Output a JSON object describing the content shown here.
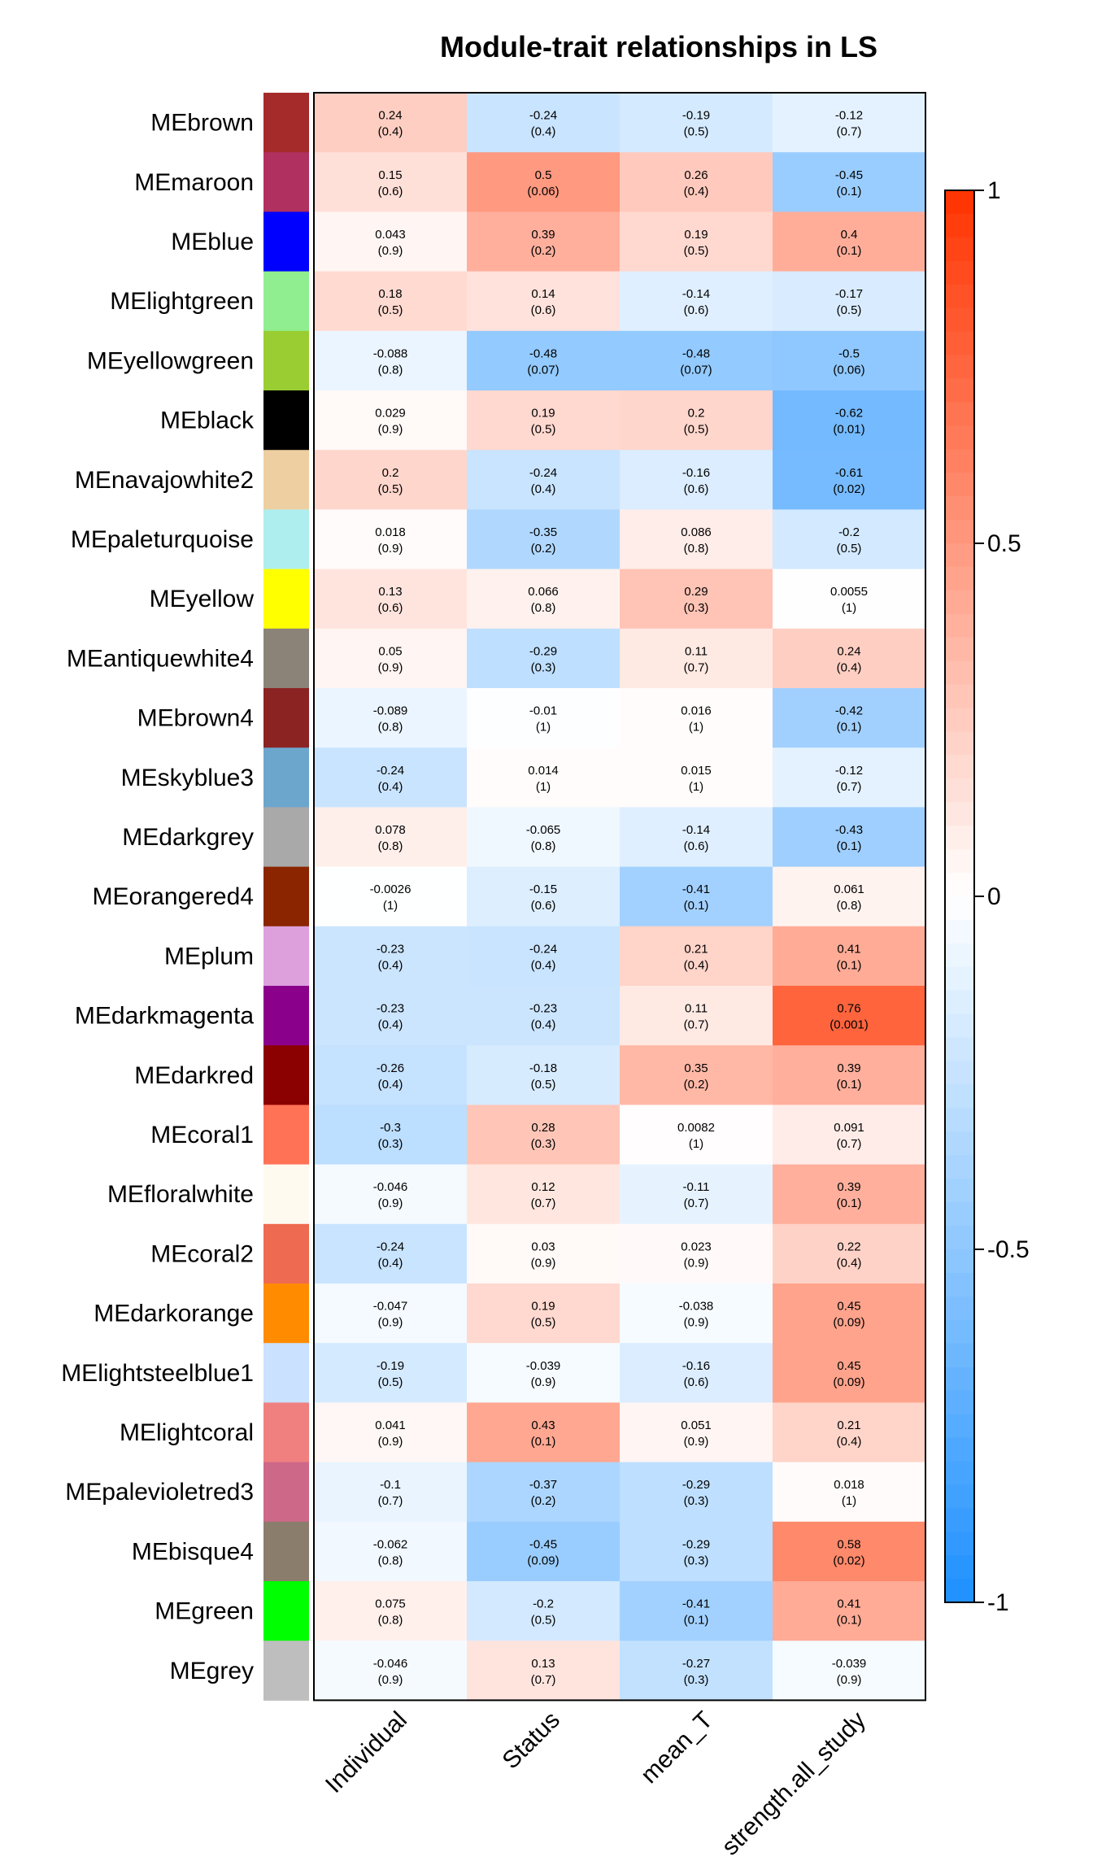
{
  "chart_data": {
    "type": "heatmap",
    "title": "Module-trait relationships in LS",
    "columns": [
      "Individual",
      "Status",
      "mean_T",
      "strength.all_study"
    ],
    "rows": [
      {
        "name": "MEbrown",
        "color": "#a52a2a",
        "values": [
          [
            "0.24",
            "(0.4)"
          ],
          [
            "-0.24",
            "(0.4)"
          ],
          [
            "-0.19",
            "(0.5)"
          ],
          [
            "-0.12",
            "(0.7)"
          ]
        ]
      },
      {
        "name": "MEmaroon",
        "color": "#b03060",
        "values": [
          [
            "0.15",
            "(0.6)"
          ],
          [
            "0.5",
            "(0.06)"
          ],
          [
            "0.26",
            "(0.4)"
          ],
          [
            "-0.45",
            "(0.1)"
          ]
        ]
      },
      {
        "name": "MEblue",
        "color": "#0000ff",
        "values": [
          [
            "0.043",
            "(0.9)"
          ],
          [
            "0.39",
            "(0.2)"
          ],
          [
            "0.19",
            "(0.5)"
          ],
          [
            "0.4",
            "(0.1)"
          ]
        ]
      },
      {
        "name": "MElightgreen",
        "color": "#90ee90",
        "values": [
          [
            "0.18",
            "(0.5)"
          ],
          [
            "0.14",
            "(0.6)"
          ],
          [
            "-0.14",
            "(0.6)"
          ],
          [
            "-0.17",
            "(0.5)"
          ]
        ]
      },
      {
        "name": "MEyellowgreen",
        "color": "#9acd32",
        "values": [
          [
            "-0.088",
            "(0.8)"
          ],
          [
            "-0.48",
            "(0.07)"
          ],
          [
            "-0.48",
            "(0.07)"
          ],
          [
            "-0.5",
            "(0.06)"
          ]
        ]
      },
      {
        "name": "MEblack",
        "color": "#000000",
        "values": [
          [
            "0.029",
            "(0.9)"
          ],
          [
            "0.19",
            "(0.5)"
          ],
          [
            "0.2",
            "(0.5)"
          ],
          [
            "-0.62",
            "(0.01)"
          ]
        ]
      },
      {
        "name": "MEnavajowhite2",
        "color": "#eecfa1",
        "values": [
          [
            "0.2",
            "(0.5)"
          ],
          [
            "-0.24",
            "(0.4)"
          ],
          [
            "-0.16",
            "(0.6)"
          ],
          [
            "-0.61",
            "(0.02)"
          ]
        ]
      },
      {
        "name": "MEpaleturquoise",
        "color": "#afeeee",
        "values": [
          [
            "0.018",
            "(0.9)"
          ],
          [
            "-0.35",
            "(0.2)"
          ],
          [
            "0.086",
            "(0.8)"
          ],
          [
            "-0.2",
            "(0.5)"
          ]
        ]
      },
      {
        "name": "MEyellow",
        "color": "#ffff00",
        "values": [
          [
            "0.13",
            "(0.6)"
          ],
          [
            "0.066",
            "(0.8)"
          ],
          [
            "0.29",
            "(0.3)"
          ],
          [
            "0.0055",
            "(1)"
          ]
        ]
      },
      {
        "name": "MEantiquewhite4",
        "color": "#8b8378",
        "values": [
          [
            "0.05",
            "(0.9)"
          ],
          [
            "-0.29",
            "(0.3)"
          ],
          [
            "0.11",
            "(0.7)"
          ],
          [
            "0.24",
            "(0.4)"
          ]
        ]
      },
      {
        "name": "MEbrown4",
        "color": "#8b2323",
        "values": [
          [
            "-0.089",
            "(0.8)"
          ],
          [
            "-0.01",
            "(1)"
          ],
          [
            "0.016",
            "(1)"
          ],
          [
            "-0.42",
            "(0.1)"
          ]
        ]
      },
      {
        "name": "MEskyblue3",
        "color": "#6ca6cd",
        "values": [
          [
            "-0.24",
            "(0.4)"
          ],
          [
            "0.014",
            "(1)"
          ],
          [
            "0.015",
            "(1)"
          ],
          [
            "-0.12",
            "(0.7)"
          ]
        ]
      },
      {
        "name": "MEdarkgrey",
        "color": "#a9a9a9",
        "values": [
          [
            "0.078",
            "(0.8)"
          ],
          [
            "-0.065",
            "(0.8)"
          ],
          [
            "-0.14",
            "(0.6)"
          ],
          [
            "-0.43",
            "(0.1)"
          ]
        ]
      },
      {
        "name": "MEorangered4",
        "color": "#8b2500",
        "values": [
          [
            "-0.0026",
            "(1)"
          ],
          [
            "-0.15",
            "(0.6)"
          ],
          [
            "-0.41",
            "(0.1)"
          ],
          [
            "0.061",
            "(0.8)"
          ]
        ]
      },
      {
        "name": "MEplum",
        "color": "#dda0dd",
        "values": [
          [
            "-0.23",
            "(0.4)"
          ],
          [
            "-0.24",
            "(0.4)"
          ],
          [
            "0.21",
            "(0.4)"
          ],
          [
            "0.41",
            "(0.1)"
          ]
        ]
      },
      {
        "name": "MEdarkmagenta",
        "color": "#8b008b",
        "values": [
          [
            "-0.23",
            "(0.4)"
          ],
          [
            "-0.23",
            "(0.4)"
          ],
          [
            "0.11",
            "(0.7)"
          ],
          [
            "0.76",
            "(0.001)"
          ]
        ]
      },
      {
        "name": "MEdarkred",
        "color": "#8b0000",
        "values": [
          [
            "-0.26",
            "(0.4)"
          ],
          [
            "-0.18",
            "(0.5)"
          ],
          [
            "0.35",
            "(0.2)"
          ],
          [
            "0.39",
            "(0.1)"
          ]
        ]
      },
      {
        "name": "MEcoral1",
        "color": "#ff7256",
        "values": [
          [
            "-0.3",
            "(0.3)"
          ],
          [
            "0.28",
            "(0.3)"
          ],
          [
            "0.0082",
            "(1)"
          ],
          [
            "0.091",
            "(0.7)"
          ]
        ]
      },
      {
        "name": "MEfloralwhite",
        "color": "#fffaf0",
        "values": [
          [
            "-0.046",
            "(0.9)"
          ],
          [
            "0.12",
            "(0.7)"
          ],
          [
            "-0.11",
            "(0.7)"
          ],
          [
            "0.39",
            "(0.1)"
          ]
        ]
      },
      {
        "name": "MEcoral2",
        "color": "#ee6a50",
        "values": [
          [
            "-0.24",
            "(0.4)"
          ],
          [
            "0.03",
            "(0.9)"
          ],
          [
            "0.023",
            "(0.9)"
          ],
          [
            "0.22",
            "(0.4)"
          ]
        ]
      },
      {
        "name": "MEdarkorange",
        "color": "#ff8c00",
        "values": [
          [
            "-0.047",
            "(0.9)"
          ],
          [
            "0.19",
            "(0.5)"
          ],
          [
            "-0.038",
            "(0.9)"
          ],
          [
            "0.45",
            "(0.09)"
          ]
        ]
      },
      {
        "name": "MElightsteelblue1",
        "color": "#cae1ff",
        "values": [
          [
            "-0.19",
            "(0.5)"
          ],
          [
            "-0.039",
            "(0.9)"
          ],
          [
            "-0.16",
            "(0.6)"
          ],
          [
            "0.45",
            "(0.09)"
          ]
        ]
      },
      {
        "name": "MElightcoral",
        "color": "#f08080",
        "values": [
          [
            "0.041",
            "(0.9)"
          ],
          [
            "0.43",
            "(0.1)"
          ],
          [
            "0.051",
            "(0.9)"
          ],
          [
            "0.21",
            "(0.4)"
          ]
        ]
      },
      {
        "name": "MEpalevioletred3",
        "color": "#cd6889",
        "values": [
          [
            "-0.1",
            "(0.7)"
          ],
          [
            "-0.37",
            "(0.2)"
          ],
          [
            "-0.29",
            "(0.3)"
          ],
          [
            "0.018",
            "(1)"
          ]
        ]
      },
      {
        "name": "MEbisque4",
        "color": "#8b7d6b",
        "values": [
          [
            "-0.062",
            "(0.8)"
          ],
          [
            "-0.45",
            "(0.09)"
          ],
          [
            "-0.29",
            "(0.3)"
          ],
          [
            "0.58",
            "(0.02)"
          ]
        ]
      },
      {
        "name": "MEgreen",
        "color": "#00ff00",
        "values": [
          [
            "0.075",
            "(0.8)"
          ],
          [
            "-0.2",
            "(0.5)"
          ],
          [
            "-0.41",
            "(0.1)"
          ],
          [
            "0.41",
            "(0.1)"
          ]
        ]
      },
      {
        "name": "MEgrey",
        "color": "#bebebe",
        "values": [
          [
            "-0.046",
            "(0.9)"
          ],
          [
            "0.13",
            "(0.7)"
          ],
          [
            "-0.27",
            "(0.3)"
          ],
          [
            "-0.039",
            "(0.9)"
          ]
        ]
      }
    ],
    "colorscale": {
      "min": -1,
      "max": 1,
      "low_color": "#1e90ff",
      "mid_color": "#ffffff",
      "high_color": "#ff3300",
      "ticks": [
        "1",
        "0.5",
        "0",
        "-0.5",
        "-1"
      ],
      "tick_values": [
        1,
        0.5,
        0,
        -0.5,
        -1
      ]
    }
  }
}
